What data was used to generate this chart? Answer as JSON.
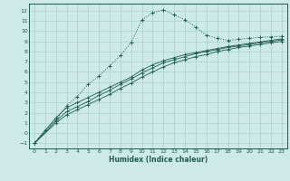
{
  "xlabel": "Humidex (Indice chaleur)",
  "xlim": [
    -0.5,
    23.5
  ],
  "ylim": [
    -1.5,
    12.7
  ],
  "xticks": [
    0,
    1,
    2,
    3,
    4,
    5,
    6,
    7,
    8,
    9,
    10,
    11,
    12,
    13,
    14,
    15,
    16,
    17,
    18,
    19,
    20,
    21,
    22,
    23
  ],
  "yticks": [
    -1,
    0,
    1,
    2,
    3,
    4,
    5,
    6,
    7,
    8,
    9,
    10,
    11,
    12
  ],
  "bg_color": "#cdeae6",
  "grid_color": "#aed4cf",
  "line_color": "#1e5c50",
  "line1_x": [
    0,
    1,
    2,
    3,
    4,
    5,
    6,
    7,
    8,
    9,
    10,
    11,
    12,
    13,
    14,
    15,
    16,
    17,
    18,
    19,
    20,
    21,
    22,
    23
  ],
  "line1_y": [
    -1.0,
    0.3,
    1.3,
    2.7,
    3.6,
    4.8,
    5.6,
    6.6,
    7.6,
    8.9,
    11.1,
    11.8,
    12.1,
    11.6,
    11.1,
    10.4,
    9.6,
    9.3,
    9.1,
    9.2,
    9.3,
    9.4,
    9.45,
    9.5
  ],
  "line2_x": [
    0,
    2,
    3,
    4,
    5,
    6,
    7,
    8,
    9,
    10,
    11,
    12,
    13,
    14,
    15,
    16,
    17,
    18,
    19,
    20,
    21,
    22,
    23
  ],
  "line2_y": [
    -1.0,
    1.5,
    2.5,
    3.0,
    3.5,
    4.0,
    4.5,
    5.0,
    5.5,
    6.2,
    6.7,
    7.1,
    7.4,
    7.7,
    7.9,
    8.1,
    8.3,
    8.5,
    8.65,
    8.8,
    8.95,
    9.1,
    9.25
  ],
  "line3_x": [
    0,
    2,
    3,
    4,
    5,
    6,
    7,
    8,
    9,
    10,
    11,
    12,
    13,
    14,
    15,
    16,
    17,
    18,
    19,
    20,
    21,
    22,
    23
  ],
  "line3_y": [
    -1.0,
    1.2,
    2.1,
    2.6,
    3.1,
    3.7,
    4.2,
    4.8,
    5.3,
    5.9,
    6.4,
    6.9,
    7.2,
    7.5,
    7.8,
    8.0,
    8.2,
    8.4,
    8.55,
    8.7,
    8.85,
    9.0,
    9.15
  ],
  "line4_x": [
    0,
    2,
    3,
    4,
    5,
    6,
    7,
    8,
    9,
    10,
    11,
    12,
    13,
    14,
    15,
    16,
    17,
    18,
    19,
    20,
    21,
    22,
    23
  ],
  "line4_y": [
    -1.0,
    1.0,
    1.8,
    2.3,
    2.8,
    3.3,
    3.8,
    4.4,
    4.9,
    5.5,
    6.0,
    6.5,
    6.9,
    7.2,
    7.5,
    7.7,
    8.0,
    8.2,
    8.4,
    8.55,
    8.7,
    8.85,
    9.0
  ]
}
